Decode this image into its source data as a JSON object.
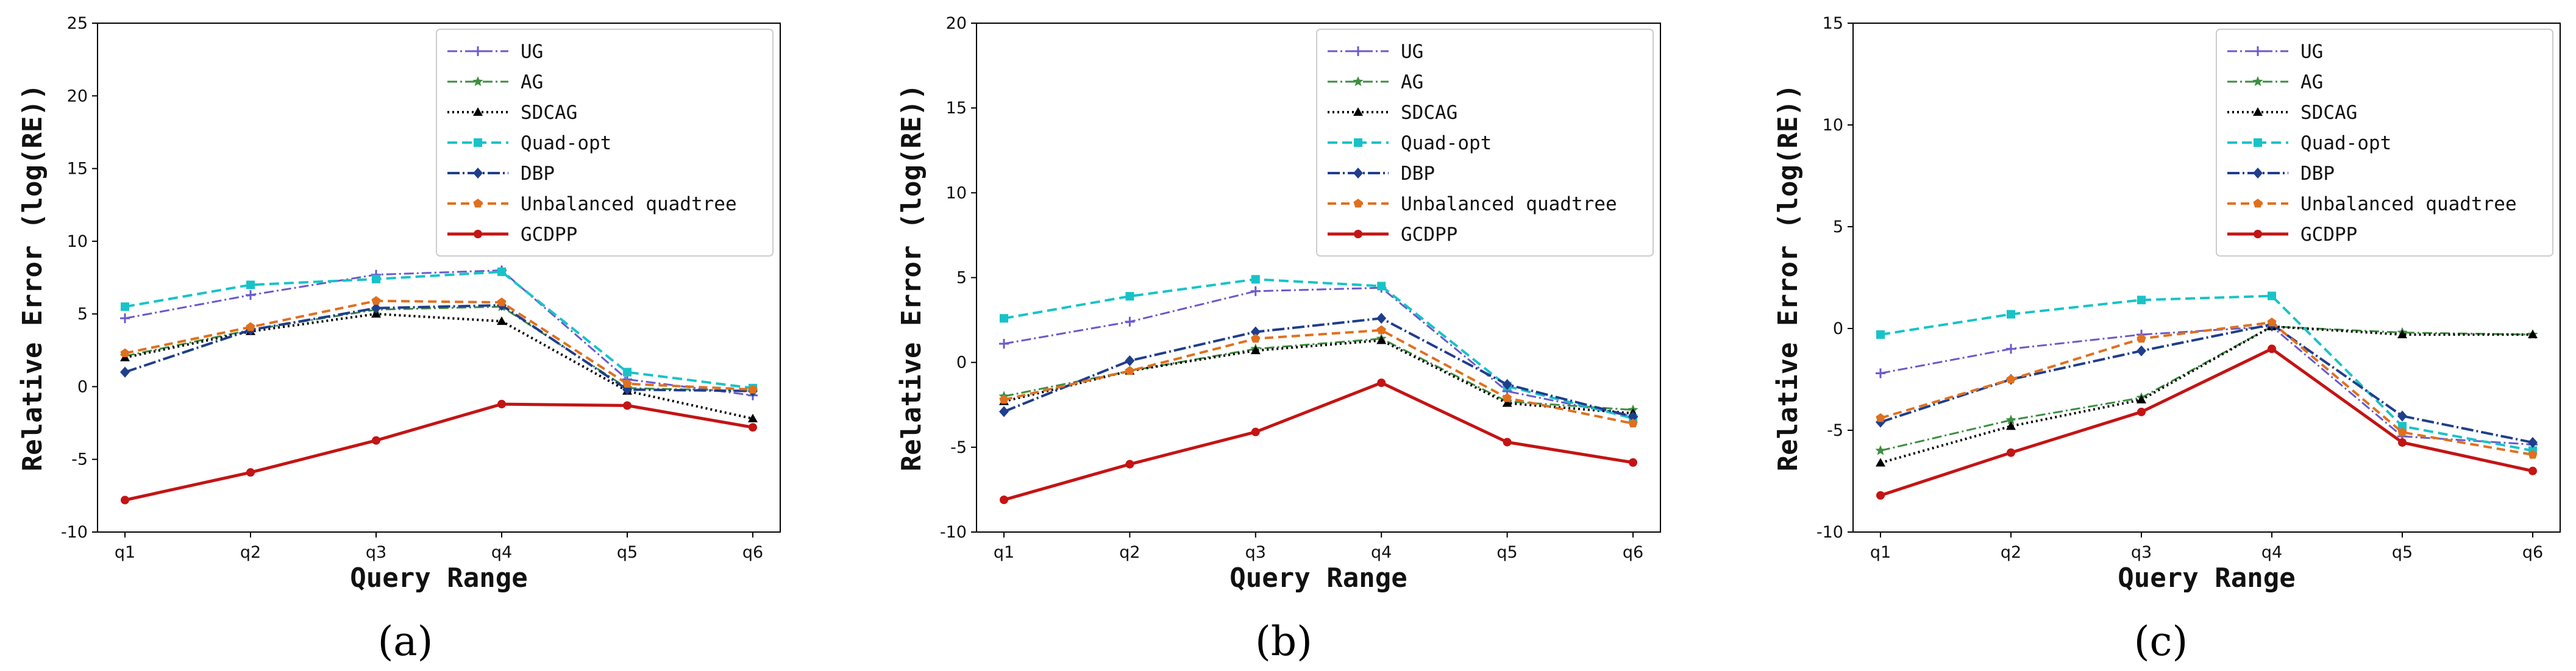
{
  "chart_data": [
    {
      "type": "line",
      "caption": "(a)",
      "xlabel": "Query Range",
      "ylabel": "Relative Error (log(RE))",
      "categories": [
        "q1",
        "q2",
        "q3",
        "q4",
        "q5",
        "q6"
      ],
      "ylim": [
        -10,
        25
      ],
      "yticks": [
        -10,
        -5,
        0,
        5,
        10,
        15,
        20,
        25
      ],
      "grid": false,
      "legend_position": "top-right",
      "series": [
        {
          "name": "UG",
          "values": [
            4.7,
            6.3,
            7.7,
            8.0,
            0.5,
            -0.6
          ]
        },
        {
          "name": "AG",
          "values": [
            2.1,
            3.9,
            5.3,
            5.5,
            -0.1,
            -0.3
          ]
        },
        {
          "name": "SDCAG",
          "values": [
            2.0,
            3.8,
            5.0,
            4.5,
            -0.3,
            -2.2
          ]
        },
        {
          "name": "Quad-opt",
          "values": [
            5.5,
            7.0,
            7.4,
            7.9,
            1.0,
            -0.1
          ]
        },
        {
          "name": "DBP",
          "values": [
            1.0,
            3.9,
            5.4,
            5.6,
            -0.2,
            -0.3
          ]
        },
        {
          "name": "Unbalanced quadtree",
          "values": [
            2.3,
            4.1,
            5.9,
            5.8,
            0.2,
            -0.2
          ]
        },
        {
          "name": "GCDPP",
          "values": [
            -7.8,
            -5.9,
            -3.7,
            -1.2,
            -1.3,
            -2.8
          ]
        }
      ]
    },
    {
      "type": "line",
      "caption": "(b)",
      "xlabel": "Query Range",
      "ylabel": "Relative Error (log(RE))",
      "categories": [
        "q1",
        "q2",
        "q3",
        "q4",
        "q5",
        "q6"
      ],
      "ylim": [
        -10,
        20
      ],
      "yticks": [
        -10,
        -5,
        0,
        5,
        10,
        15,
        20
      ],
      "grid": false,
      "legend_position": "top-right",
      "series": [
        {
          "name": "UG",
          "values": [
            1.1,
            2.4,
            4.2,
            4.4,
            -1.7,
            -3.2
          ]
        },
        {
          "name": "AG",
          "values": [
            -2.0,
            -0.5,
            0.8,
            1.4,
            -2.3,
            -2.8
          ]
        },
        {
          "name": "SDCAG",
          "values": [
            -2.3,
            -0.5,
            0.7,
            1.3,
            -2.4,
            -3.0
          ]
        },
        {
          "name": "Quad-opt",
          "values": [
            2.6,
            3.9,
            4.9,
            4.5,
            -1.4,
            -3.3
          ]
        },
        {
          "name": "DBP",
          "values": [
            -2.9,
            0.1,
            1.8,
            2.6,
            -1.3,
            -3.2
          ]
        },
        {
          "name": "Unbalanced quadtree",
          "values": [
            -2.2,
            -0.5,
            1.4,
            1.9,
            -2.1,
            -3.6
          ]
        },
        {
          "name": "GCDPP",
          "values": [
            -8.1,
            -6.0,
            -4.1,
            -1.2,
            -4.7,
            -5.9
          ]
        }
      ]
    },
    {
      "type": "line",
      "caption": "(c)",
      "xlabel": "Query Range",
      "ylabel": "Relative Error (log(RE))",
      "categories": [
        "q1",
        "q2",
        "q3",
        "q4",
        "q5",
        "q6"
      ],
      "ylim": [
        -10,
        15
      ],
      "yticks": [
        -10,
        -5,
        0,
        5,
        10,
        15
      ],
      "grid": false,
      "legend_position": "top-right",
      "series": [
        {
          "name": "UG",
          "values": [
            -2.2,
            -1.0,
            -0.3,
            0.1,
            -5.3,
            -5.7
          ]
        },
        {
          "name": "AG",
          "values": [
            -6.0,
            -4.5,
            -3.4,
            0.1,
            -0.2,
            -0.3
          ]
        },
        {
          "name": "SDCAG",
          "values": [
            -6.6,
            -4.8,
            -3.5,
            0.1,
            -0.3,
            -0.3
          ]
        },
        {
          "name": "Quad-opt",
          "values": [
            -0.3,
            0.7,
            1.4,
            1.6,
            -4.8,
            -6.0
          ]
        },
        {
          "name": "DBP",
          "values": [
            -4.6,
            -2.5,
            -1.1,
            0.2,
            -4.3,
            -5.6
          ]
        },
        {
          "name": "Unbalanced quadtree",
          "values": [
            -4.4,
            -2.5,
            -0.5,
            0.3,
            -5.1,
            -6.2
          ]
        },
        {
          "name": "GCDPP",
          "values": [
            -8.2,
            -6.1,
            -4.1,
            -1.0,
            -5.6,
            -7.0
          ]
        }
      ]
    }
  ],
  "series_styles": [
    {
      "name": "UG",
      "color": "#6a5acd",
      "dash": "16,5,3,5",
      "width": 3,
      "marker": "plus"
    },
    {
      "name": "AG",
      "color": "#3e8e41",
      "dash": "16,5,3,5",
      "width": 3,
      "marker": "star"
    },
    {
      "name": "SDCAG",
      "color": "#000000",
      "dash": "3,5",
      "width": 4,
      "marker": "triangle"
    },
    {
      "name": "Quad-opt",
      "color": "#17c3c8",
      "dash": "16,8",
      "width": 4,
      "marker": "square"
    },
    {
      "name": "DBP",
      "color": "#1f3e8c",
      "dash": "20,5,3,5",
      "width": 4,
      "marker": "diamond"
    },
    {
      "name": "Unbalanced quadtree",
      "color": "#e0701e",
      "dash": "14,8",
      "width": 4,
      "marker": "pentagon"
    },
    {
      "name": "GCDPP",
      "color": "#c41414",
      "dash": "",
      "width": 5,
      "marker": "circle"
    }
  ]
}
